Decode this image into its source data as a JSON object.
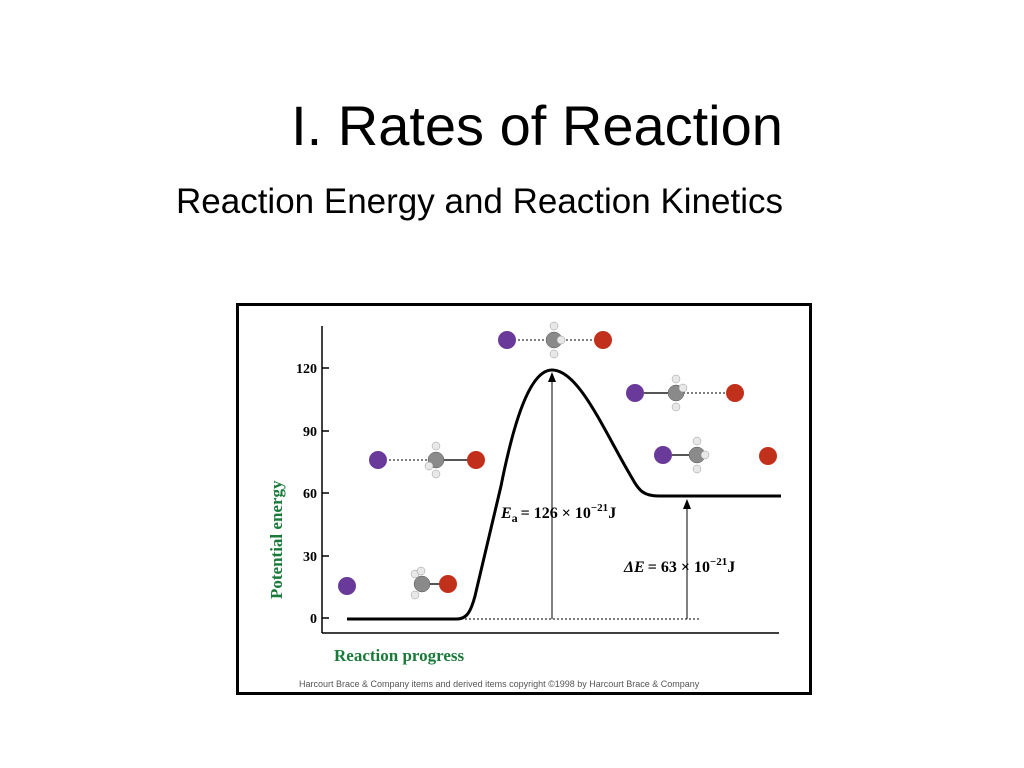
{
  "slide": {
    "title": "I. Rates of Reaction",
    "subtitle": "Reaction Energy and Reaction Kinetics"
  },
  "figure": {
    "y_axis_label": "Potential energy",
    "x_axis_label": "Reaction progress",
    "y_ticks": [
      "120",
      "90",
      "60",
      "30",
      "0"
    ],
    "activation_energy": {
      "symbol": "E",
      "subscript": "a",
      "value": "= 126 × 10",
      "exponent": "−21",
      "unit": "J"
    },
    "energy_change": {
      "symbol": "ΔE",
      "value": "= 63 × 10",
      "exponent": "−21",
      "unit": "J"
    },
    "copyright": "Harcourt Brace & Company items and derived items copyright ©1998 by Harcourt Brace & Company",
    "colors": {
      "axis_label_green": "#1a7a3a",
      "iodide_purple": "#6a3a9a",
      "bromine_red": "#c0301a",
      "carbon_gray": "#8a8a8a",
      "hydrogen_white": "#e8e8e8"
    },
    "molecules": [
      {
        "stage": "reactants",
        "description": "separate purple ion and CH3Br"
      },
      {
        "stage": "approach",
        "description": "purple ion approaching CH3Br"
      },
      {
        "stage": "transition-state",
        "description": "purple...C...Br"
      },
      {
        "stage": "departure",
        "description": "purple-C...Br"
      },
      {
        "stage": "products",
        "description": "CH3-purple and separate Br"
      }
    ]
  }
}
